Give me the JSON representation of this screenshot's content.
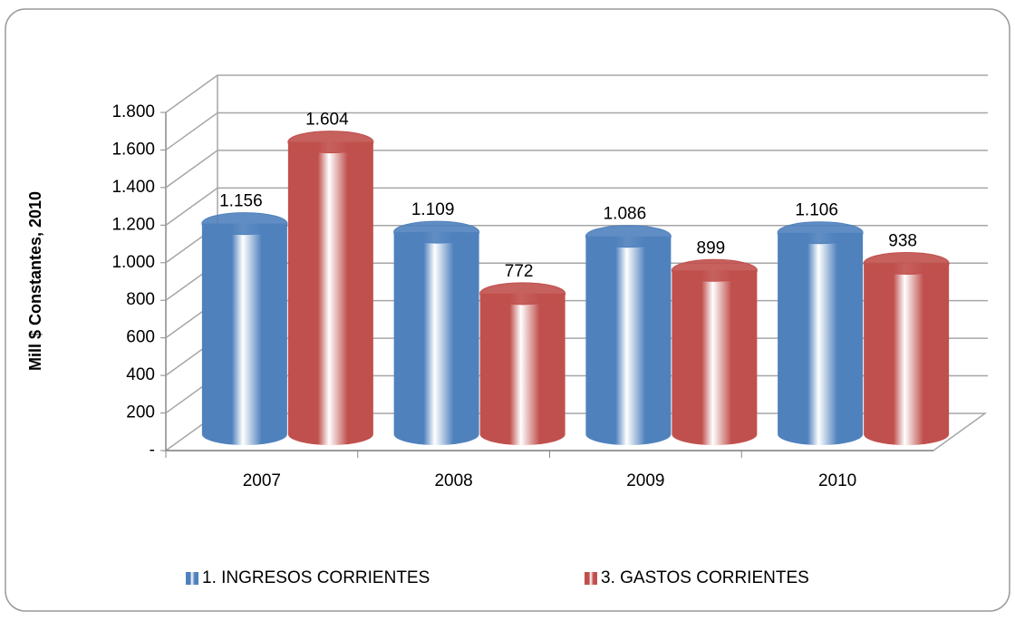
{
  "chart_data": {
    "type": "bar3d",
    "y_axis_label": "Mill $ Constantes, 2010",
    "categories": [
      "2007",
      "2008",
      "2009",
      "2010"
    ],
    "series": [
      {
        "name": "1.  INGRESOS CORRIENTES",
        "color": "#4f81bd",
        "values": [
          1156,
          1109,
          1086,
          1106
        ],
        "value_labels": [
          "1.156",
          "1.109",
          "1.086",
          "1.106"
        ]
      },
      {
        "name": "3.  GASTOS CORRIENTES",
        "color": "#c0504d",
        "values": [
          1604,
          772,
          899,
          938
        ],
        "value_labels": [
          "1.604",
          "772",
          "899",
          "938"
        ]
      }
    ],
    "ylim": [
      0,
      1800
    ],
    "yticks": [
      {
        "value": 0,
        "label": "-"
      },
      200,
      400,
      600,
      800,
      {
        "value": 1000,
        "label": "1.000"
      },
      {
        "value": 1200,
        "label": "1.200"
      },
      {
        "value": 1400,
        "label": "1.400"
      },
      {
        "value": 1600,
        "label": "1.600"
      },
      {
        "value": 1800,
        "label": "1.800"
      }
    ],
    "grid": true,
    "legend": "bottom"
  }
}
